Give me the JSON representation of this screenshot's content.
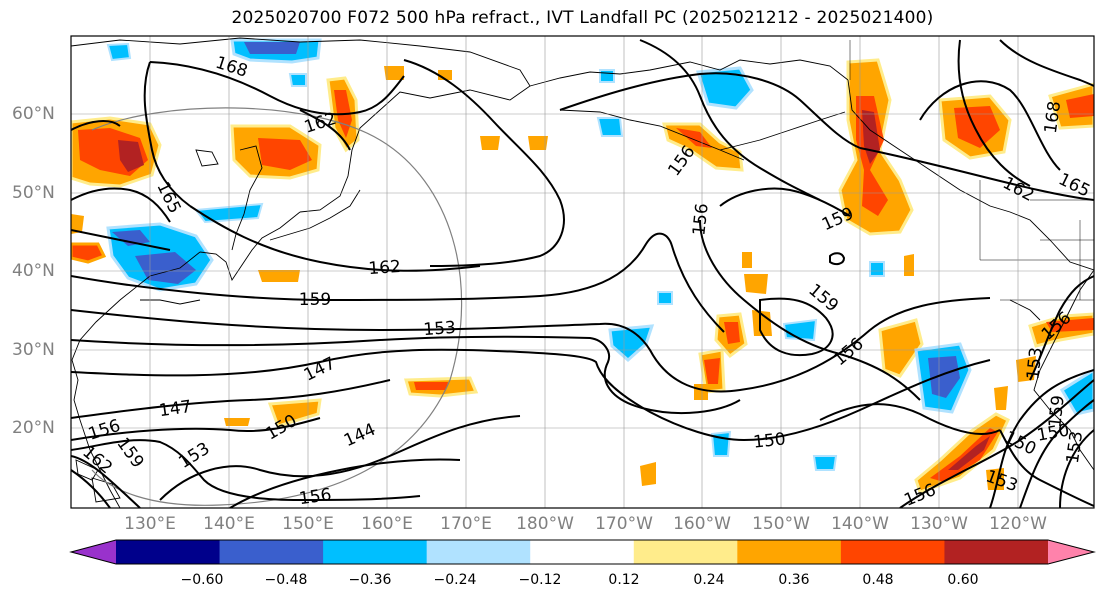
{
  "title": "2025020700 F072 500 hPa refract., IVT Landfall PC (2025021212 - 2025021400)",
  "lat_labels": [
    "60°N",
    "50°N",
    "40°N",
    "30°N",
    "20°N"
  ],
  "lon_labels": [
    "130°E",
    "140°E",
    "150°E",
    "160°E",
    "170°E",
    "180°W",
    "170°W",
    "160°W",
    "150°W",
    "140°W",
    "130°W",
    "120°W"
  ],
  "colorbar": {
    "ticks": [
      "−0.60",
      "−0.48",
      "−0.36",
      "−0.24",
      "−0.12",
      "0.12",
      "0.24",
      "0.36",
      "0.48",
      "0.60"
    ],
    "colors": [
      "#9932cc",
      "#00008b",
      "#3a5fcd",
      "#00bfff",
      "#b0e2ff",
      "#ffffff",
      "#ffec8b",
      "#ffa500",
      "#ff4500",
      "#b22222",
      "#ff82ab"
    ]
  },
  "contour_labels": [
    "168",
    "162",
    "165",
    "162",
    "159",
    "153",
    "147",
    "147",
    "150",
    "153",
    "144",
    "156",
    "156",
    "159",
    "162",
    "156",
    "150",
    "156",
    "159",
    "159",
    "156",
    "150",
    "153",
    "156",
    "162",
    "165",
    "168",
    "153",
    "156",
    "150",
    "159",
    "153"
  ]
}
